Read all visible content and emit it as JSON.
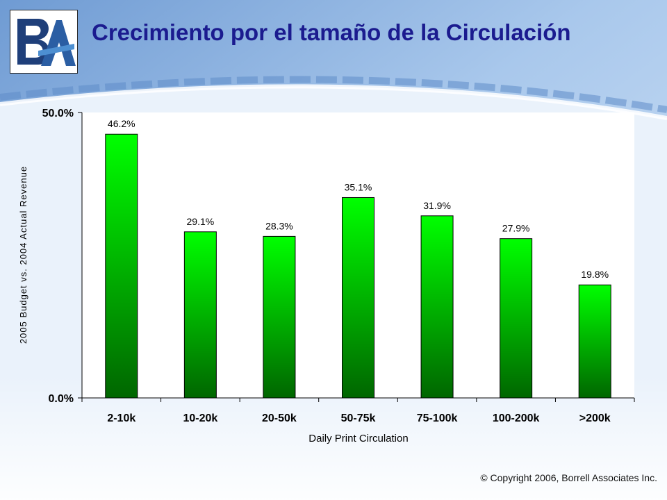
{
  "slide": {
    "title": "Crecimiento por el tamaño de la Circulación",
    "logo_text": "BA",
    "copyright": "© Copyright 2006, Borrell Associates Inc."
  },
  "colors": {
    "title": "#1b1b8f",
    "bar_top": "#00ff00",
    "bar_bottom": "#006600",
    "logo_blue": "#1f3f7a"
  },
  "chart_data": {
    "type": "bar",
    "categories": [
      "2-10k",
      "10-20k",
      "20-50k",
      "50-75k",
      "75-100k",
      "100-200k",
      ">200k"
    ],
    "values": [
      46.2,
      29.1,
      28.3,
      35.1,
      31.9,
      27.9,
      19.8
    ],
    "data_labels": [
      "46.2%",
      "29.1%",
      "28.3%",
      "35.1%",
      "31.9%",
      "27.9%",
      "19.8%"
    ],
    "xlabel": "Daily Print Circulation",
    "ylabel": "2005 Budget vs. 2004 Actual Revenue",
    "ylim": [
      0,
      50
    ],
    "yticks": [
      0,
      50
    ],
    "ytick_labels": [
      "0.0%",
      "50.0%"
    ],
    "grid": false,
    "legend": "none"
  }
}
